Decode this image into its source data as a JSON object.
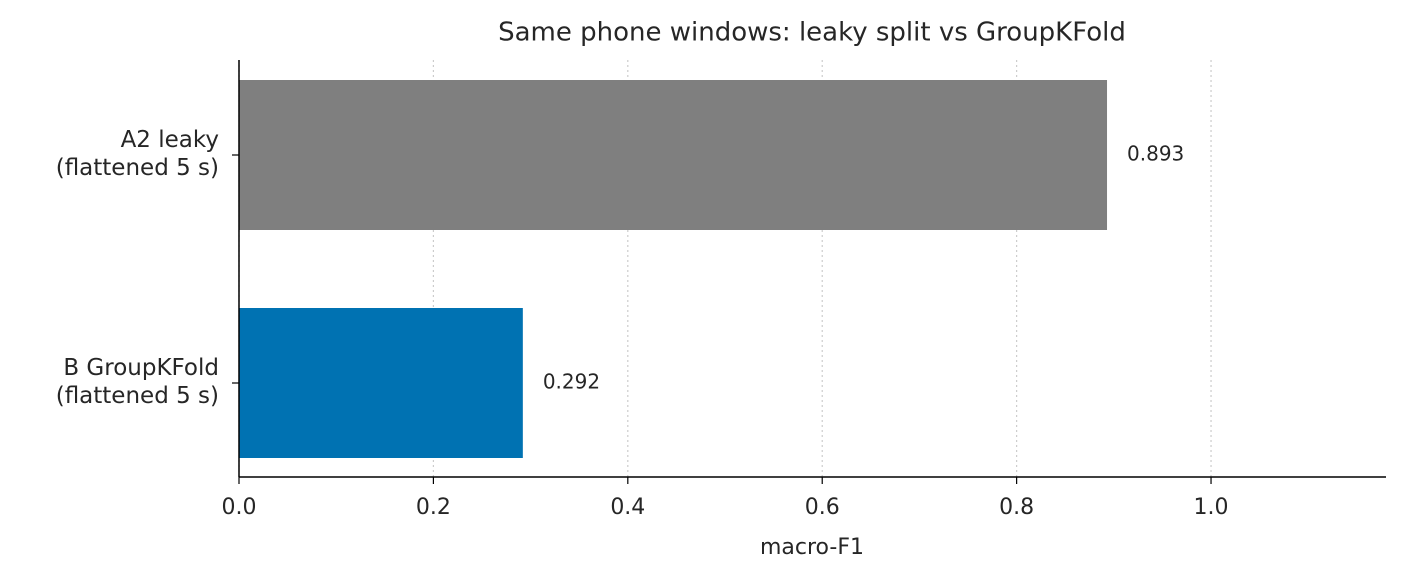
{
  "chart_data": {
    "type": "barh",
    "title": "Same phone windows: leaky split vs GroupKFold",
    "categories": [
      "A2 leaky\n(flattened 5 s)",
      "B GroupKFold\n(flattened 5 s)"
    ],
    "values": [
      0.893,
      0.292
    ],
    "colors": [
      "#7f7f7f",
      "#0072b2"
    ],
    "xlabel": "macro-F1",
    "xlim": [
      0,
      1.18
    ],
    "xticks": [
      {
        "value": 0,
        "label": "0.0"
      },
      0.2,
      0.4,
      0.6,
      0.8,
      {
        "value": 1,
        "label": "1.0"
      }
    ],
    "grid": true
  }
}
